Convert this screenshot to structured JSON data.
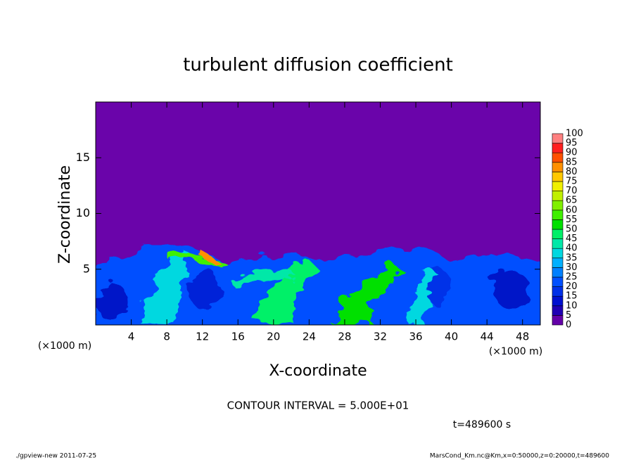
{
  "chart_data": {
    "type": "contour",
    "title": "turbulent diffusion coefficient",
    "xlabel": "X-coordinate",
    "ylabel": "Z-coordinate",
    "xunit": "(×1000 m)",
    "xunit_right": "(×1000 m)",
    "contour_interval": "CONTOUR INTERVAL = 5.000E+01",
    "time_label": "t=489600 s",
    "footer_left": "./gpview-new   2011-07-25",
    "footer_right": "MarsCond_Km.nc@Km,x=0:50000,z=0:20000,t=489600",
    "xlim": [
      0,
      50
    ],
    "ylim": [
      0,
      20
    ],
    "xticks": [
      4,
      8,
      12,
      16,
      20,
      24,
      28,
      32,
      36,
      40,
      44,
      48
    ],
    "yticks": [
      5,
      10,
      15
    ],
    "colorbar": {
      "levels": [
        0,
        5,
        10,
        15,
        20,
        25,
        30,
        35,
        40,
        45,
        50,
        55,
        60,
        65,
        70,
        75,
        80,
        85,
        90,
        95,
        100
      ],
      "colors": [
        "#6400a8",
        "#2000b4",
        "#0010d0",
        "#0030e8",
        "#0050ff",
        "#0080ff",
        "#00b0ff",
        "#00d8e0",
        "#00e8a8",
        "#00f068",
        "#00e000",
        "#40f000",
        "#80f000",
        "#c0f000",
        "#f0f000",
        "#ffc800",
        "#ff9000",
        "#ff5000",
        "#ff2020",
        "#ff8080"
      ]
    }
  }
}
